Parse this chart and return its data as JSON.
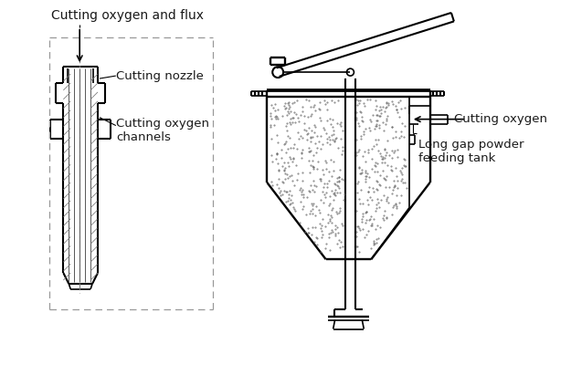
{
  "bg_color": "#ffffff",
  "line_color": "#000000",
  "text_color": "#1a1a1a",
  "labels": {
    "cutting_oxygen_flux": "Cutting oxygen and flux",
    "cutting_nozzle": "Cutting nozzle",
    "cutting_oxygen_channels": "Cutting oxygen\nchannels",
    "cutting_oxygen": "Cutting oxygen",
    "long_gap": "Long gap powder\nfeeding tank"
  },
  "figsize": [
    6.25,
    4.0
  ],
  "dpi": 100
}
